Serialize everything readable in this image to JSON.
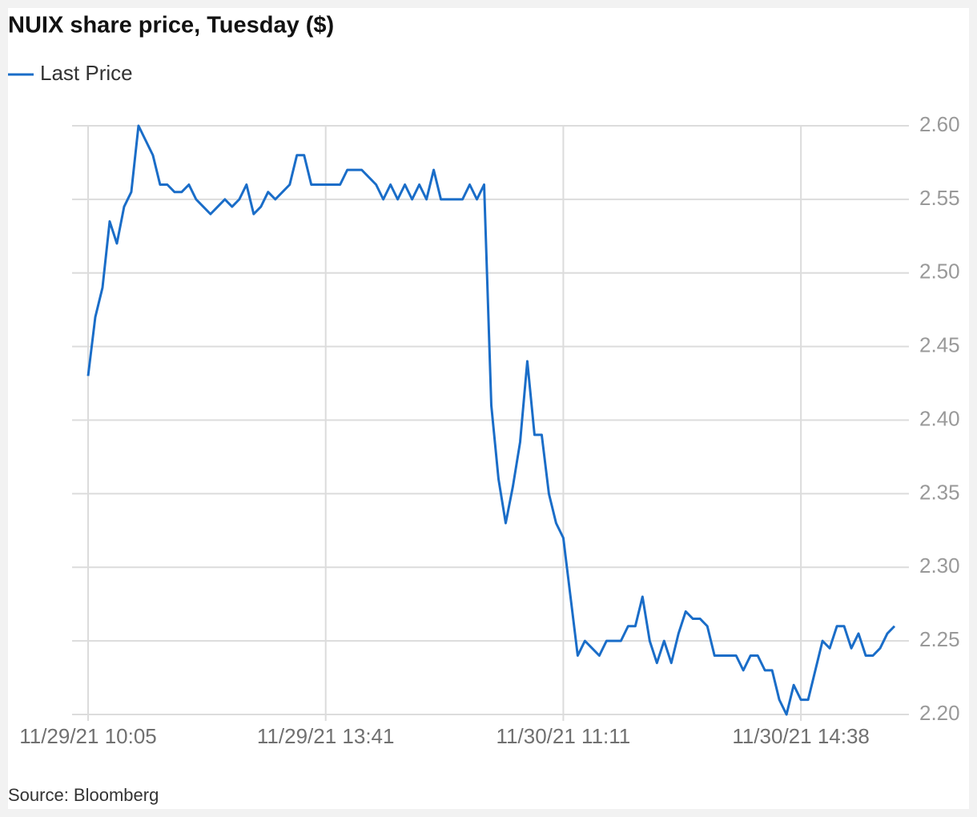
{
  "chart_data": {
    "type": "line",
    "title": "NUIX share price, Tuesday ($)",
    "source": "Source: Bloomberg",
    "categories": [
      "11/29/21 10:05",
      null,
      null,
      null,
      null,
      null,
      null,
      null,
      null,
      null,
      null,
      null,
      null,
      null,
      null,
      null,
      null,
      null,
      null,
      null,
      null,
      null,
      null,
      null,
      null,
      null,
      null,
      null,
      null,
      null,
      null,
      null,
      null,
      "11/29/21 13:41",
      null,
      null,
      null,
      null,
      null,
      null,
      null,
      null,
      null,
      null,
      null,
      null,
      null,
      null,
      null,
      null,
      null,
      null,
      null,
      null,
      null,
      null,
      null,
      null,
      null,
      null,
      null,
      null,
      null,
      null,
      null,
      null,
      "11/30/21 11:11",
      null,
      null,
      null,
      null,
      null,
      null,
      null,
      null,
      null,
      null,
      null,
      null,
      null,
      null,
      null,
      null,
      null,
      null,
      null,
      null,
      null,
      null,
      null,
      null,
      null,
      null,
      null,
      null,
      null,
      null,
      null,
      null,
      "11/30/21 14:38",
      null,
      null,
      null,
      null,
      null,
      null,
      null,
      null,
      null,
      null,
      null,
      null,
      null
    ],
    "series": [
      {
        "name": "Last Price",
        "color": "#1a6dc8",
        "values": [
          2.43,
          2.47,
          2.49,
          2.535,
          2.52,
          2.545,
          2.555,
          2.6,
          2.59,
          2.58,
          2.56,
          2.56,
          2.555,
          2.555,
          2.56,
          2.55,
          2.545,
          2.54,
          2.545,
          2.55,
          2.545,
          2.55,
          2.56,
          2.54,
          2.545,
          2.555,
          2.55,
          2.555,
          2.56,
          2.58,
          2.58,
          2.56,
          2.56,
          2.56,
          2.56,
          2.56,
          2.57,
          2.57,
          2.57,
          2.565,
          2.56,
          2.55,
          2.56,
          2.55,
          2.56,
          2.55,
          2.56,
          2.55,
          2.57,
          2.55,
          2.55,
          2.55,
          2.55,
          2.56,
          2.55,
          2.56,
          2.41,
          2.36,
          2.33,
          2.355,
          2.385,
          2.44,
          2.39,
          2.39,
          2.35,
          2.33,
          2.32,
          2.28,
          2.24,
          2.25,
          2.245,
          2.24,
          2.25,
          2.25,
          2.25,
          2.26,
          2.26,
          2.28,
          2.25,
          2.235,
          2.25,
          2.235,
          2.255,
          2.27,
          2.265,
          2.265,
          2.26,
          2.24,
          2.24,
          2.24,
          2.24,
          2.23,
          2.24,
          2.24,
          2.23,
          2.23,
          2.21,
          2.2,
          2.22,
          2.21,
          2.21,
          2.23,
          2.25,
          2.245,
          2.26,
          2.26,
          2.245,
          2.255,
          2.24,
          2.24,
          2.245,
          2.255,
          2.26
        ]
      }
    ],
    "ylim": [
      2.2,
      2.6
    ],
    "yticks": [
      {
        "value": 2.2,
        "label": "2.20"
      },
      {
        "value": 2.25,
        "label": "2.25"
      },
      {
        "value": 2.3,
        "label": "2.30"
      },
      {
        "value": 2.35,
        "label": "2.35"
      },
      {
        "value": 2.4,
        "label": "2.40"
      },
      {
        "value": 2.45,
        "label": "2.45"
      },
      {
        "value": 2.5,
        "label": "2.50"
      },
      {
        "value": 2.55,
        "label": "2.55"
      },
      {
        "value": 2.6,
        "label": "2.60"
      }
    ],
    "y_axis_side": "right",
    "grid": true
  }
}
